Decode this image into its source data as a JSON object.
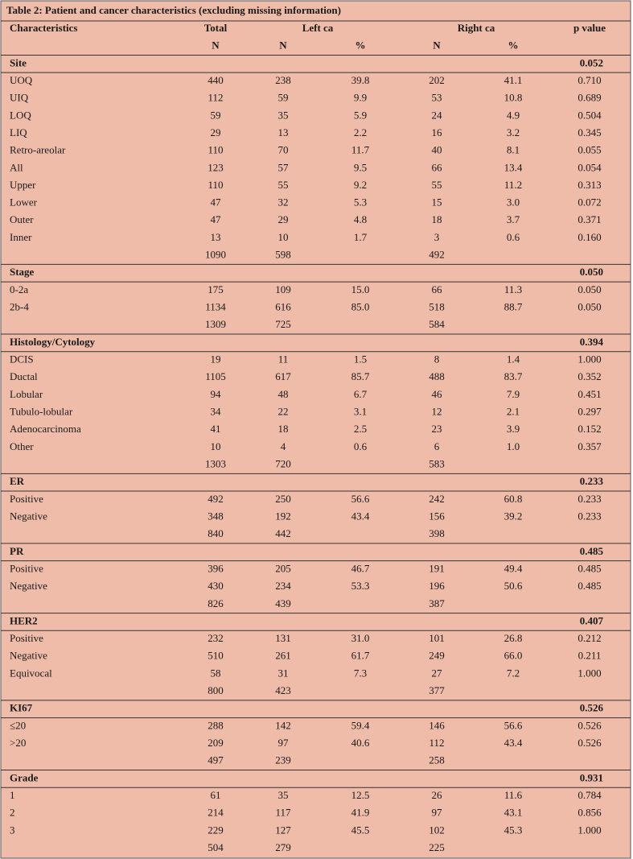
{
  "title": "Table 2: Patient and cancer characteristics (excluding missing information)",
  "header": {
    "columns": [
      "Characteristics",
      "Total",
      "Left ca",
      "Right ca",
      "p value"
    ],
    "subcolumns": [
      "N",
      "N",
      "%",
      "N",
      "%"
    ]
  },
  "sections": [
    {
      "name": "Site",
      "p": "0.052",
      "rows": [
        [
          "UOQ",
          "440",
          "238",
          "39.8",
          "202",
          "41.1",
          "0.710"
        ],
        [
          "UIQ",
          "112",
          "59",
          "9.9",
          "53",
          "10.8",
          "0.689"
        ],
        [
          "LOQ",
          "59",
          "35",
          "5.9",
          "24",
          "4.9",
          "0.504"
        ],
        [
          "LIQ",
          "29",
          "13",
          "2.2",
          "16",
          "3.2",
          "0.345"
        ],
        [
          "Retro-areolar",
          "110",
          "70",
          "11.7",
          "40",
          "8.1",
          "0.055"
        ],
        [
          "All",
          "123",
          "57",
          "9.5",
          "66",
          "13.4",
          "0.054"
        ],
        [
          "Upper",
          "110",
          "55",
          "9.2",
          "55",
          "11.2",
          "0.313"
        ],
        [
          "Lower",
          "47",
          "32",
          "5.3",
          "15",
          "3.0",
          "0.072"
        ],
        [
          "Outer",
          "47",
          "29",
          "4.8",
          "18",
          "3.7",
          "0.371"
        ],
        [
          "Inner",
          "13",
          "10",
          "1.7",
          "3",
          "0.6",
          "0.160"
        ]
      ],
      "totals": [
        "1090",
        "598",
        "492"
      ]
    },
    {
      "name": "Stage",
      "p": "0.050",
      "rows": [
        [
          "0-2a",
          "175",
          "109",
          "15.0",
          "66",
          "11.3",
          "0.050"
        ],
        [
          "2b-4",
          "1134",
          "616",
          "85.0",
          "518",
          "88.7",
          "0.050"
        ]
      ],
      "totals": [
        "1309",
        "725",
        "584"
      ]
    },
    {
      "name": "Histology/Cytology",
      "p": "0.394",
      "rows": [
        [
          "DCIS",
          "19",
          "11",
          "1.5",
          "8",
          "1.4",
          "1.000"
        ],
        [
          "Ductal",
          "1105",
          "617",
          "85.7",
          "488",
          "83.7",
          "0.352"
        ],
        [
          "Lobular",
          "94",
          "48",
          "6.7",
          "46",
          "7.9",
          "0.451"
        ],
        [
          "Tubulo-lobular",
          "34",
          "22",
          "3.1",
          "12",
          "2.1",
          "0.297"
        ],
        [
          "Adenocarcinoma",
          "41",
          "18",
          "2.5",
          "23",
          "3.9",
          "0.152"
        ],
        [
          "Other",
          "10",
          "4",
          "0.6",
          "6",
          "1.0",
          "0.357"
        ]
      ],
      "totals": [
        "1303",
        "720",
        "583"
      ]
    },
    {
      "name": "ER",
      "p": "0.233",
      "rows": [
        [
          "Positive",
          "492",
          "250",
          "56.6",
          "242",
          "60.8",
          "0.233"
        ],
        [
          "Negative",
          "348",
          "192",
          "43.4",
          "156",
          "39.2",
          "0.233"
        ]
      ],
      "totals": [
        "840",
        "442",
        "398"
      ]
    },
    {
      "name": "PR",
      "p": "0.485",
      "rows": [
        [
          "Positive",
          "396",
          "205",
          "46.7",
          "191",
          "49.4",
          "0.485"
        ],
        [
          "Negative",
          "430",
          "234",
          "53.3",
          "196",
          "50.6",
          "0.485"
        ]
      ],
      "totals": [
        "826",
        "439",
        "387"
      ]
    },
    {
      "name": "HER2",
      "p": "0.407",
      "rows": [
        [
          "Positive",
          "232",
          "131",
          "31.0",
          "101",
          "26.8",
          "0.212"
        ],
        [
          "Negative",
          "510",
          "261",
          "61.7",
          "249",
          "66.0",
          "0.211"
        ],
        [
          "Equivocal",
          "58",
          "31",
          "7.3",
          "27",
          "7.2",
          "1.000"
        ]
      ],
      "totals": [
        "800",
        "423",
        "377"
      ]
    },
    {
      "name": "KI67",
      "p": "0.526",
      "rows": [
        [
          "≤20",
          "288",
          "142",
          "59.4",
          "146",
          "56.6",
          "0.526"
        ],
        [
          ">20",
          "209",
          "97",
          "40.6",
          "112",
          "43.4",
          "0.526"
        ]
      ],
      "totals": [
        "497",
        "239",
        "258"
      ]
    },
    {
      "name": "Grade",
      "p": "0.931",
      "rows": [
        [
          "1",
          "61",
          "35",
          "12.5",
          "26",
          "11.6",
          "0.784"
        ],
        [
          "2",
          "214",
          "117",
          "41.9",
          "97",
          "43.1",
          "0.856"
        ],
        [
          "3",
          "229",
          "127",
          "45.5",
          "102",
          "45.3",
          "1.000"
        ]
      ],
      "totals": [
        "504",
        "279",
        "225"
      ]
    }
  ]
}
